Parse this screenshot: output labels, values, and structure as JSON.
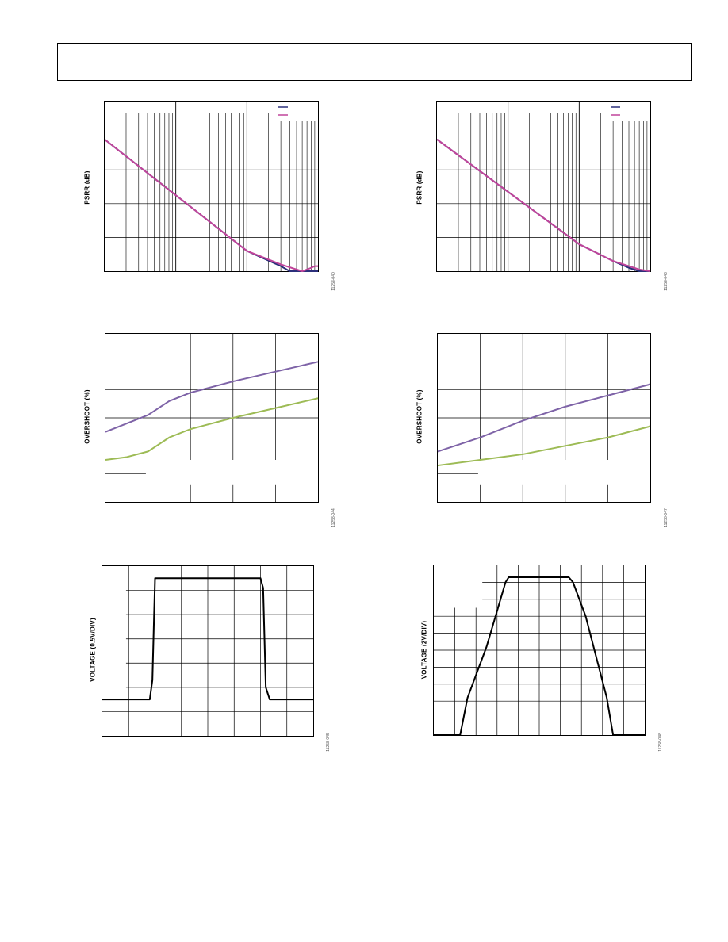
{
  "chart_data": [
    {
      "id": "psrr-left",
      "type": "line",
      "ylabel": "PSRR (dB)",
      "figure_id": "11258-040",
      "x_scale": "log",
      "xlim": [
        1,
        1000
      ],
      "ylim": [
        0,
        100
      ],
      "grid": true,
      "legend": "top-right",
      "colors": {
        "series1": "#2b2f7a",
        "series2": "#c0449a"
      },
      "series": [
        {
          "x": [
            1,
            100,
            300,
            400,
            500,
            600,
            800,
            1000
          ],
          "y": [
            78,
            12,
            3,
            0,
            -2,
            -2,
            -1,
            0
          ]
        },
        {
          "x": [
            1,
            100,
            300,
            500,
            600,
            700,
            800,
            900,
            1000
          ],
          "y": [
            78,
            12,
            4,
            1,
            0,
            1,
            2,
            3,
            3
          ]
        }
      ]
    },
    {
      "id": "psrr-right",
      "type": "line",
      "ylabel": "PSRR (dB)",
      "figure_id": "11258-043",
      "x_scale": "log",
      "xlim": [
        1,
        1000
      ],
      "ylim": [
        0,
        100
      ],
      "grid": true,
      "legend": "top-right",
      "colors": {
        "series1": "#2b2f7a",
        "series2": "#c0449a"
      },
      "series": [
        {
          "x": [
            1,
            100,
            300,
            500,
            700,
            1000
          ],
          "y": [
            78,
            16,
            6,
            2,
            -1,
            -2
          ]
        },
        {
          "x": [
            1,
            100,
            300,
            500,
            700,
            1000
          ],
          "y": [
            78,
            16,
            6,
            3,
            1,
            0
          ]
        }
      ]
    },
    {
      "id": "overshoot-left",
      "type": "line",
      "ylabel": "OVERSHOOT (%)",
      "figure_id": "11258-044",
      "xlim": [
        0,
        5
      ],
      "ylim": [
        0,
        6
      ],
      "grid": true,
      "colors": {
        "series1": "#7e63a7",
        "series2": "#9dbb55"
      },
      "series": [
        {
          "x": [
            0,
            0.5,
            1,
            1.5,
            2,
            3,
            4,
            5
          ],
          "y": [
            2.5,
            2.8,
            3.1,
            3.6,
            3.9,
            4.3,
            4.65,
            5.0
          ]
        },
        {
          "x": [
            0,
            0.5,
            1,
            1.5,
            2,
            3,
            4,
            5
          ],
          "y": [
            1.5,
            1.6,
            1.8,
            2.3,
            2.6,
            3.0,
            3.35,
            3.7
          ]
        }
      ]
    },
    {
      "id": "overshoot-right",
      "type": "line",
      "ylabel": "OVERSHOOT (%)",
      "figure_id": "11258-047",
      "xlim": [
        0,
        5
      ],
      "ylim": [
        0,
        6
      ],
      "grid": true,
      "colors": {
        "series1": "#7e63a7",
        "series2": "#9dbb55"
      },
      "series": [
        {
          "x": [
            0,
            1,
            2,
            3,
            4,
            5
          ],
          "y": [
            1.8,
            2.3,
            2.9,
            3.4,
            3.8,
            4.2
          ]
        },
        {
          "x": [
            0,
            1,
            2,
            3,
            4,
            5
          ],
          "y": [
            1.3,
            1.5,
            1.7,
            2.0,
            2.3,
            2.7
          ]
        }
      ]
    },
    {
      "id": "step-left",
      "type": "line",
      "ylabel": "VOLTAGE (0.5V/DIV)",
      "figure_id": "11258-045",
      "xlim": [
        0,
        8
      ],
      "ylim": [
        0,
        7
      ],
      "grid": true,
      "colors": {
        "series1": "#000000"
      },
      "series": [
        {
          "x": [
            0,
            1.8,
            1.9,
            2.0,
            2.15,
            6.0,
            6.1,
            6.2,
            6.35,
            8
          ],
          "y": [
            1.5,
            1.5,
            2.3,
            6.5,
            6.5,
            6.5,
            6.1,
            2.0,
            1.5,
            1.5
          ]
        }
      ]
    },
    {
      "id": "step-right",
      "type": "line",
      "ylabel": "VOLTAGE (2V/DIV)",
      "figure_id": "11258-048",
      "xlim": [
        0,
        10
      ],
      "ylim": [
        0,
        10
      ],
      "grid": true,
      "colors": {
        "series1": "#000000"
      },
      "series": [
        {
          "x": [
            0,
            1.25,
            1.6,
            2.5,
            3.4,
            3.55,
            6.4,
            6.6,
            7.2,
            8.2,
            8.5,
            10
          ],
          "y": [
            0,
            0,
            2.2,
            5.2,
            9.0,
            9.3,
            9.3,
            9.0,
            7.0,
            2.2,
            0,
            0
          ]
        }
      ]
    }
  ]
}
